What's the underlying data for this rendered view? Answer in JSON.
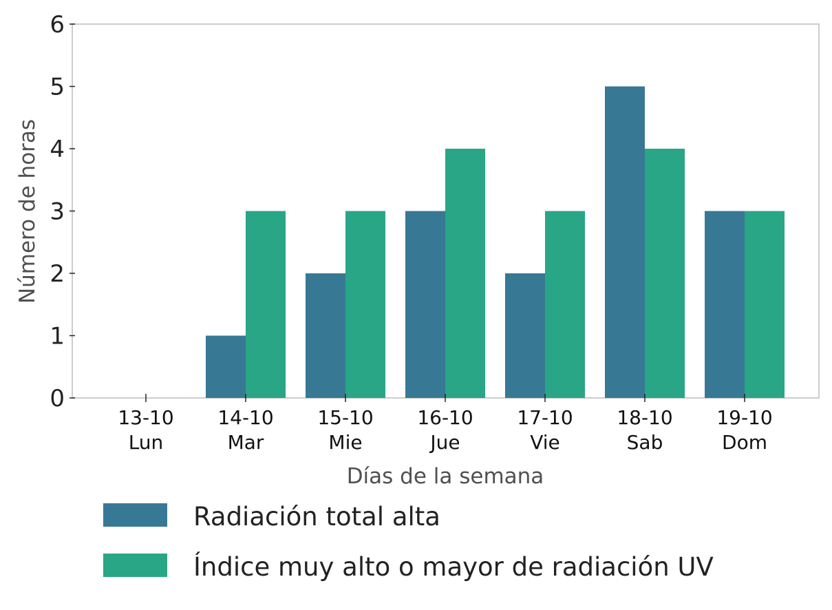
{
  "chart_data": {
    "type": "bar",
    "categories": [
      [
        "13-10",
        "Lun"
      ],
      [
        "14-10",
        "Mar"
      ],
      [
        "15-10",
        "Mie"
      ],
      [
        "16-10",
        "Jue"
      ],
      [
        "17-10",
        "Vie"
      ],
      [
        "18-10",
        "Sab"
      ],
      [
        "19-10",
        "Dom"
      ]
    ],
    "series": [
      {
        "name": "Radiación total alta",
        "color": "#377994",
        "values": [
          0,
          1,
          2,
          3,
          2,
          5,
          3
        ]
      },
      {
        "name": "Índice muy alto o mayor de radiación UV",
        "color": "#28a685",
        "values": [
          0,
          3,
          3,
          4,
          3,
          4,
          3
        ]
      }
    ],
    "xlabel": "Días de la semana",
    "ylabel": "Número de horas",
    "ylim": [
      0,
      6
    ],
    "yticks": [
      0,
      1,
      2,
      3,
      4,
      5,
      6
    ],
    "grid": false,
    "legend_position": "bottom"
  }
}
